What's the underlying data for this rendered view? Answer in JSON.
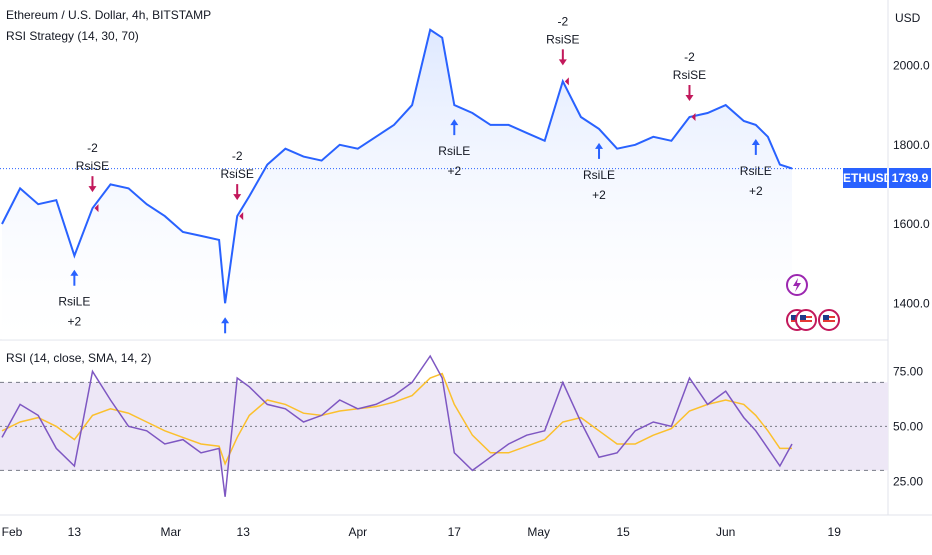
{
  "header": {
    "title": "Ethereum / U.S. Dollar, 4h, BITSTAMP",
    "strategy": "RSI Strategy (14, 30, 70)"
  },
  "price_axis": {
    "currency": "USD",
    "ticks": [
      "2000.0",
      "1800.0",
      "1600.0",
      "1400.0"
    ]
  },
  "price_tag": {
    "symbol": "ETHUSD",
    "value": "1739.9"
  },
  "rsi_panel": {
    "title": "RSI (14, close, SMA, 14, 2)",
    "ticks": [
      "75.00",
      "50.00",
      "25.00"
    ]
  },
  "time_axis": {
    "labels": [
      "Feb",
      "13",
      "Mar",
      "13",
      "Apr",
      "17",
      "May",
      "15",
      "Jun",
      "19"
    ]
  },
  "colors": {
    "price_line": "#2962ff",
    "price_fill": "#dbe6ff",
    "long_arrow": "#2962ff",
    "short_arrow": "#c2185b",
    "rsi_line": "#7e57c2",
    "rsi_ma": "#fbc02d",
    "rsi_band": "#ede7f6",
    "tag_bg": "#2962ff"
  },
  "chart_data": [
    {
      "type": "line",
      "title": "Ethereum / U.S. Dollar, 4h, BITSTAMP",
      "ylabel": "USD",
      "ylim": [
        1320,
        2140
      ],
      "x": [
        "Feb 1",
        "Feb 4",
        "Feb 7",
        "Feb 10",
        "Feb 13",
        "Feb 16",
        "Feb 19",
        "Feb 22",
        "Feb 25",
        "Feb 28",
        "Mar 3",
        "Mar 6",
        "Mar 9",
        "Mar 10",
        "Mar 12",
        "Mar 14",
        "Mar 17",
        "Mar 20",
        "Mar 23",
        "Mar 26",
        "Mar 29",
        "Apr 1",
        "Apr 4",
        "Apr 7",
        "Apr 10",
        "Apr 13",
        "Apr 15",
        "Apr 17",
        "Apr 20",
        "Apr 23",
        "Apr 26",
        "Apr 29",
        "May 2",
        "May 5",
        "May 8",
        "May 11",
        "May 14",
        "May 17",
        "May 20",
        "May 23",
        "May 26",
        "May 29",
        "Jun 1",
        "Jun 4",
        "Jun 6",
        "Jun 8",
        "Jun 10",
        "Jun 12"
      ],
      "series": [
        {
          "values": [
            1600,
            1690,
            1650,
            1660,
            1520,
            1640,
            1700,
            1690,
            1650,
            1620,
            1580,
            1570,
            1560,
            1400,
            1620,
            1670,
            1750,
            1790,
            1770,
            1760,
            1800,
            1790,
            1820,
            1850,
            1900,
            2090,
            2070,
            1900,
            1880,
            1850,
            1850,
            1830,
            1810,
            1960,
            1870,
            1840,
            1790,
            1800,
            1820,
            1810,
            1870,
            1880,
            1900,
            1860,
            1850,
            1820,
            1750,
            1740
          ]
        }
      ],
      "signals": [
        {
          "x": "Feb 13",
          "type": "long",
          "label": "RsiLE",
          "qty": "+2"
        },
        {
          "x": "Feb 16",
          "type": "short",
          "label": "RsiSE",
          "qty": "-2"
        },
        {
          "x": "Mar 10",
          "type": "long",
          "label": "",
          "qty": ""
        },
        {
          "x": "Mar 12",
          "type": "short",
          "label": "RsiSE",
          "qty": "-2"
        },
        {
          "x": "Apr 17",
          "type": "long",
          "label": "RsiLE",
          "qty": "+2"
        },
        {
          "x": "May 5",
          "type": "short",
          "label": "RsiSE",
          "qty": "-2"
        },
        {
          "x": "May 11",
          "type": "long",
          "label": "RsiLE",
          "qty": "+2"
        },
        {
          "x": "May 26",
          "type": "short",
          "label": "RsiSE",
          "qty": "-2"
        },
        {
          "x": "Jun 6",
          "type": "long",
          "label": "RsiLE",
          "qty": "+2"
        }
      ],
      "last_value": 1739.9
    },
    {
      "type": "line",
      "title": "RSI (14, close, SMA, 14, 2)",
      "ylim": [
        12,
        87
      ],
      "bands": [
        30,
        50,
        70
      ],
      "x": [
        "Feb 1",
        "Feb 4",
        "Feb 7",
        "Feb 10",
        "Feb 13",
        "Feb 16",
        "Feb 19",
        "Feb 22",
        "Feb 25",
        "Feb 28",
        "Mar 3",
        "Mar 6",
        "Mar 9",
        "Mar 10",
        "Mar 12",
        "Mar 14",
        "Mar 17",
        "Mar 20",
        "Mar 23",
        "Mar 26",
        "Mar 29",
        "Apr 1",
        "Apr 4",
        "Apr 7",
        "Apr 10",
        "Apr 13",
        "Apr 15",
        "Apr 17",
        "Apr 20",
        "Apr 23",
        "Apr 26",
        "Apr 29",
        "May 2",
        "May 5",
        "May 8",
        "May 11",
        "May 14",
        "May 17",
        "May 20",
        "May 23",
        "May 26",
        "May 29",
        "Jun 1",
        "Jun 4",
        "Jun 6",
        "Jun 8",
        "Jun 10",
        "Jun 12"
      ],
      "series": [
        {
          "name": "RSI",
          "values": [
            45,
            60,
            55,
            40,
            32,
            75,
            62,
            50,
            48,
            42,
            44,
            38,
            40,
            18,
            72,
            68,
            60,
            58,
            52,
            55,
            62,
            58,
            60,
            64,
            70,
            82,
            72,
            38,
            30,
            36,
            42,
            46,
            48,
            70,
            52,
            36,
            38,
            48,
            52,
            50,
            72,
            60,
            66,
            54,
            48,
            40,
            32,
            42
          ]
        },
        {
          "name": "MA",
          "values": [
            48,
            52,
            54,
            50,
            44,
            55,
            58,
            56,
            52,
            48,
            45,
            42,
            41,
            33,
            45,
            55,
            62,
            60,
            56,
            55,
            57,
            58,
            59,
            61,
            64,
            72,
            74,
            60,
            46,
            38,
            38,
            41,
            44,
            52,
            54,
            48,
            42,
            42,
            46,
            49,
            57,
            60,
            62,
            60,
            55,
            48,
            40,
            40
          ]
        }
      ]
    }
  ]
}
